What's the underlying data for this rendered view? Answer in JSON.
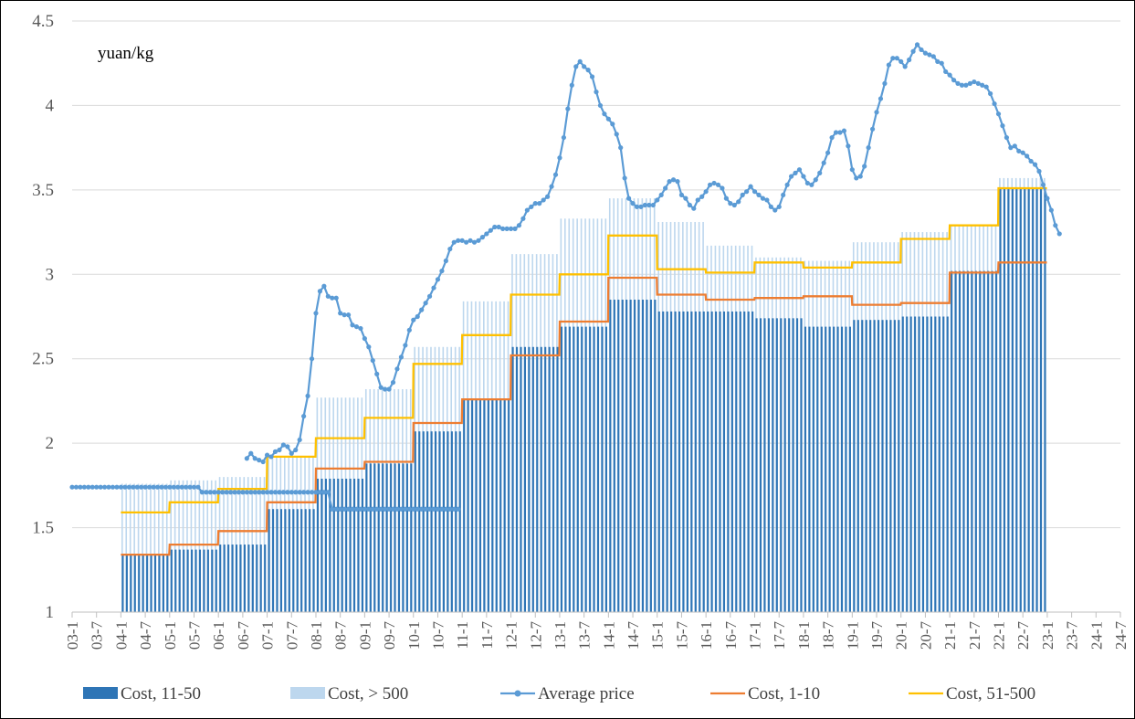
{
  "chart_data": {
    "type": "bar",
    "unit_label": "yuan/kg",
    "ylim": [
      1,
      4.5
    ],
    "yticks": [
      "1",
      "1.5",
      "2",
      "2.5",
      "3",
      "3.5",
      "4",
      "4.5"
    ],
    "xticks": [
      "03-1",
      "03-7",
      "04-1",
      "04-7",
      "05-1",
      "05-7",
      "06-1",
      "06-7",
      "07-1",
      "07-7",
      "08-1",
      "08-7",
      "09-1",
      "09-7",
      "10-1",
      "10-7",
      "11-1",
      "11-7",
      "12-1",
      "12-7",
      "13-1",
      "13-7",
      "14-1",
      "14-7",
      "15-1",
      "15-7",
      "16-1",
      "16-7",
      "17-1",
      "17-7",
      "18-1",
      "18-7",
      "19-1",
      "19-7",
      "20-1",
      "20-7",
      "21-1",
      "21-7",
      "22-1",
      "22-7",
      "23-1",
      "23-7",
      "24-1",
      "24-7"
    ],
    "grid": true,
    "legend_position": "bottom",
    "colors": {
      "cost_11_50": "#2e75b6",
      "cost_500": "#bdd7ee",
      "avg_price": "#5b9bd5",
      "cost_1_10": "#ed7d31",
      "cost_51_500": "#ffc000",
      "grid": "#d9d9d9"
    },
    "legend": [
      {
        "key": "cost_11_50",
        "label": "Cost, 11-50",
        "kind": "bar"
      },
      {
        "key": "cost_500",
        "label": "Cost,  > 500",
        "kind": "bar"
      },
      {
        "key": "avg_price",
        "label": "Average price",
        "kind": "marker-line"
      },
      {
        "key": "cost_1_10",
        "label": "Cost, 1-10",
        "kind": "line"
      },
      {
        "key": "cost_51_500",
        "label": "Cost, 51-500",
        "kind": "line"
      }
    ],
    "cost_years": [
      "04",
      "05",
      "06",
      "07",
      "08",
      "09",
      "10",
      "11",
      "12",
      "13",
      "14",
      "15",
      "16",
      "17",
      "18",
      "19",
      "20",
      "21",
      "22"
    ],
    "series": [
      {
        "name": "Cost, 11-50",
        "values": [
          1.34,
          1.37,
          1.4,
          1.61,
          1.79,
          1.88,
          2.07,
          2.26,
          2.57,
          2.69,
          2.85,
          2.78,
          2.78,
          2.74,
          2.69,
          2.73,
          2.75,
          3.02,
          3.51
        ]
      },
      {
        "name": "Cost,  > 500",
        "values": [
          1.76,
          1.78,
          1.8,
          1.92,
          2.27,
          2.32,
          2.57,
          2.84,
          3.12,
          3.33,
          3.45,
          3.31,
          3.17,
          3.1,
          3.08,
          3.19,
          3.25,
          3.29,
          3.57
        ]
      },
      {
        "name": "Cost, 1-10",
        "values": [
          1.34,
          1.4,
          1.48,
          1.65,
          1.85,
          1.89,
          2.12,
          2.26,
          2.52,
          2.72,
          2.98,
          2.88,
          2.85,
          2.86,
          2.87,
          2.82,
          2.83,
          3.01,
          3.07
        ]
      },
      {
        "name": "Cost, 51-500",
        "values": [
          1.59,
          1.65,
          1.73,
          1.92,
          2.03,
          2.15,
          2.47,
          2.64,
          2.88,
          3.0,
          3.23,
          3.03,
          3.01,
          3.07,
          3.04,
          3.07,
          3.21,
          3.29,
          3.51
        ]
      }
    ],
    "average_price": {
      "name": "Average price",
      "segments": [
        {
          "start_year": 2003,
          "start_month": 1,
          "values": [
            1.74,
            1.74,
            1.74,
            1.74,
            1.74,
            1.74,
            1.74,
            1.74,
            1.74,
            1.74,
            1.74,
            1.74,
            1.74,
            1.74,
            1.74,
            1.74,
            1.74,
            1.74,
            1.74,
            1.74,
            1.74,
            1.74,
            1.74,
            1.74,
            1.74,
            1.74,
            1.74,
            1.74,
            1.74,
            1.74,
            1.74,
            1.74,
            1.71,
            1.71,
            1.71,
            1.71,
            1.71,
            1.71,
            1.71,
            1.71,
            1.71,
            1.71,
            1.71,
            1.71,
            1.71,
            1.71,
            1.71,
            1.71,
            1.71,
            1.71,
            1.71,
            1.71,
            1.71,
            1.71,
            1.71,
            1.71,
            1.71,
            1.71,
            1.71,
            1.71,
            1.71,
            1.71,
            1.71,
            1.71,
            1.61,
            1.61,
            1.61,
            1.61,
            1.61,
            1.61,
            1.61,
            1.61,
            1.61,
            1.61,
            1.61,
            1.61,
            1.61,
            1.61,
            1.61,
            1.61,
            1.61,
            1.61,
            1.61,
            1.61,
            1.61,
            1.61,
            1.61,
            1.61,
            1.61,
            1.61,
            1.61,
            1.61,
            1.61,
            1.61,
            1.61,
            1.61
          ]
        },
        {
          "start_year": 2006,
          "start_month": 8,
          "values": [
            1.91,
            1.94,
            1.91,
            1.9,
            1.89,
            1.93,
            1.92,
            1.95,
            1.96,
            1.99,
            1.98,
            1.94,
            1.96,
            2.02,
            2.16,
            2.28,
            2.5,
            2.77,
            2.9,
            2.93,
            2.87,
            2.86,
            2.86,
            2.77,
            2.76,
            2.76,
            2.7,
            2.69,
            2.68,
            2.62,
            2.57,
            2.49,
            2.41,
            2.33,
            2.32,
            2.32,
            2.36,
            2.44,
            2.51,
            2.58,
            2.67,
            2.73,
            2.75,
            2.79,
            2.83,
            2.87,
            2.92,
            2.97,
            3.02,
            3.08,
            3.15,
            3.19,
            3.2,
            3.2,
            3.19,
            3.2,
            3.19,
            3.2,
            3.22,
            3.24,
            3.26,
            3.28,
            3.28,
            3.27,
            3.27,
            3.27,
            3.27,
            3.29,
            3.33,
            3.38,
            3.4,
            3.42,
            3.42,
            3.44,
            3.46,
            3.52,
            3.59,
            3.69,
            3.81,
            3.98,
            4.12,
            4.23,
            4.26,
            4.23,
            4.21,
            4.17,
            4.08,
            4.0,
            3.95,
            3.92,
            3.89,
            3.83,
            3.75,
            3.57,
            3.45,
            3.42,
            3.4,
            3.4,
            3.41,
            3.41,
            3.41,
            3.44,
            3.47,
            3.51,
            3.55,
            3.56,
            3.55,
            3.47,
            3.45,
            3.41,
            3.39,
            3.44,
            3.46,
            3.49,
            3.53,
            3.54,
            3.53,
            3.51,
            3.45,
            3.42,
            3.41,
            3.43,
            3.47,
            3.49,
            3.52,
            3.49,
            3.47,
            3.45,
            3.44,
            3.4,
            3.38,
            3.4,
            3.47,
            3.53,
            3.58,
            3.6,
            3.62,
            3.58,
            3.54,
            3.53,
            3.56,
            3.6,
            3.66,
            3.72,
            3.81,
            3.84,
            3.84,
            3.85,
            3.76,
            3.62,
            3.57,
            3.58,
            3.64,
            3.75,
            3.86,
            3.96,
            4.04,
            4.13,
            4.24,
            4.28,
            4.28,
            4.26,
            4.23,
            4.27,
            4.32,
            4.36,
            4.33,
            4.31,
            4.3,
            4.29,
            4.26,
            4.25,
            4.2,
            4.18,
            4.15,
            4.13,
            4.12,
            4.12,
            4.13,
            4.14,
            4.13,
            4.12,
            4.11,
            4.07,
            4.01,
            3.95,
            3.88,
            3.81,
            3.75,
            3.76,
            3.73,
            3.72,
            3.7,
            3.67,
            3.65,
            3.61,
            3.53,
            3.45,
            3.38,
            3.29,
            3.24
          ]
        }
      ]
    }
  }
}
